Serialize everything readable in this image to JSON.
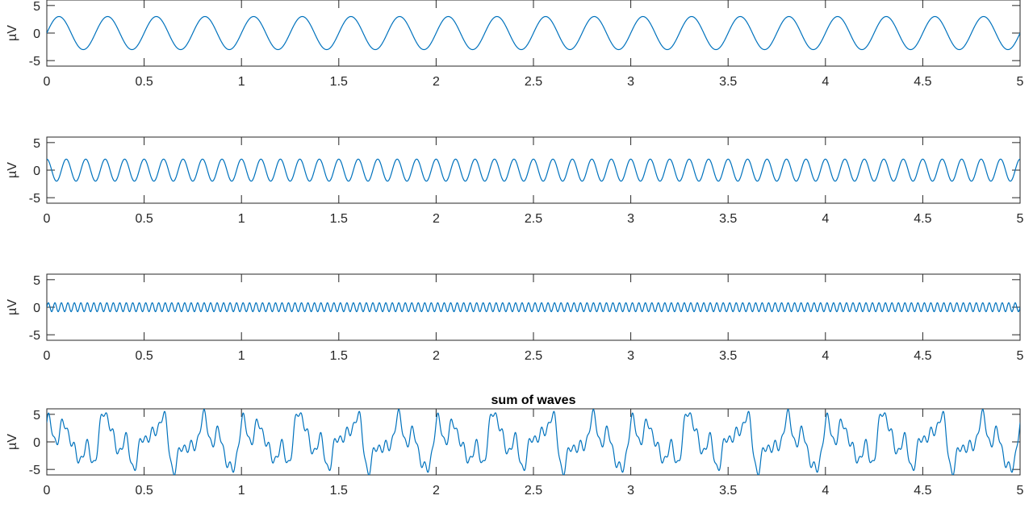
{
  "colors": {
    "line": "#0072bd",
    "axis": "#262626",
    "background": "#ffffff"
  },
  "chart_data": [
    {
      "type": "line",
      "title": "",
      "xlabel": "",
      "ylabel": "µV",
      "xlim": [
        0,
        5
      ],
      "ylim": [
        -6,
        6
      ],
      "xticks": [
        "0",
        "0.5",
        "1",
        "1.5",
        "2",
        "2.5",
        "3",
        "3.5",
        "4",
        "4.5",
        "5"
      ],
      "yticks": [
        "-5",
        "0",
        "5"
      ],
      "grid": false,
      "series": [
        {
          "function": "sine",
          "amplitude": 3,
          "frequency_hz": 4,
          "phase_rad": 0
        }
      ]
    },
    {
      "type": "line",
      "title": "",
      "xlabel": "",
      "ylabel": "µV",
      "xlim": [
        0,
        5
      ],
      "ylim": [
        -6,
        6
      ],
      "xticks": [
        "0",
        "0.5",
        "1",
        "1.5",
        "2",
        "2.5",
        "3",
        "3.5",
        "4",
        "4.5",
        "5"
      ],
      "yticks": [
        "-5",
        "0",
        "5"
      ],
      "grid": false,
      "series": [
        {
          "function": "sine",
          "amplitude": 2,
          "frequency_hz": 10,
          "phase_rad": 1.5708
        }
      ]
    },
    {
      "type": "line",
      "title": "",
      "xlabel": "",
      "ylabel": "µV",
      "xlim": [
        0,
        5
      ],
      "ylim": [
        -6,
        6
      ],
      "xticks": [
        "0",
        "0.5",
        "1",
        "1.5",
        "2",
        "2.5",
        "3",
        "3.5",
        "4",
        "4.5",
        "5"
      ],
      "yticks": [
        "-5",
        "0",
        "5"
      ],
      "grid": false,
      "series": [
        {
          "function": "sine",
          "amplitude": 0.8,
          "frequency_hz": 30,
          "phase_rad": 0
        }
      ]
    },
    {
      "type": "line",
      "title": "sum of waves",
      "xlabel": "",
      "ylabel": "µV",
      "xlim": [
        0,
        5
      ],
      "ylim": [
        -6,
        6
      ],
      "xticks": [
        "0",
        "0.5",
        "1",
        "1.5",
        "2",
        "2.5",
        "3",
        "3.5",
        "4",
        "4.5",
        "5"
      ],
      "yticks": [
        "-5",
        "0",
        "5"
      ],
      "grid": false,
      "series": [
        {
          "function": "sum",
          "components": [
            {
              "amplitude": 3,
              "frequency_hz": 4,
              "phase_rad": 0
            },
            {
              "amplitude": 2,
              "frequency_hz": 10,
              "phase_rad": 1.5708
            },
            {
              "amplitude": 0.8,
              "frequency_hz": 30,
              "phase_rad": 0
            },
            {
              "amplitude": 1.2,
              "frequency_hz": 15,
              "phase_rad": 0.6
            },
            {
              "amplitude": 0.9,
              "frequency_hz": 7,
              "phase_rad": 1.1
            }
          ]
        }
      ]
    }
  ]
}
